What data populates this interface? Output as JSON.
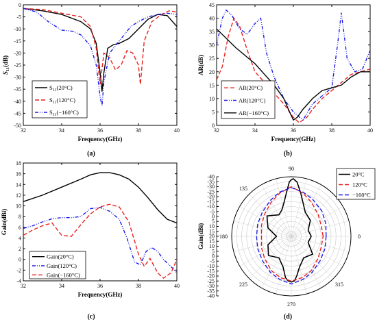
{
  "chart_data": [
    {
      "panel": "(a)",
      "type": "line",
      "xlabel": "Frequency(GHz)",
      "ylabel_parts": [
        "S",
        "11",
        "(dB)"
      ],
      "xlim": [
        32,
        40
      ],
      "ylim": [
        -50,
        0
      ],
      "xticks": [
        32,
        34,
        36,
        38,
        40
      ],
      "yticks": [
        0,
        -5,
        -10,
        -15,
        -20,
        -25,
        -30,
        -35,
        -40,
        -45,
        -50
      ],
      "legend_position": "bottom-left",
      "series": [
        {
          "name": "S11(20°C)",
          "name_parts": [
            "S",
            "11",
            "(20°C)"
          ],
          "color": "#000000",
          "dash": "solid",
          "x": [
            32,
            33,
            34,
            35,
            35.5,
            35.8,
            36.0,
            36.1,
            36.2,
            36.4,
            36.7,
            37,
            37.5,
            38,
            38.5,
            39,
            39.5,
            40
          ],
          "y": [
            -1.5,
            -2.5,
            -4,
            -7,
            -10,
            -16,
            -28,
            -36,
            -28,
            -18,
            -16.5,
            -16,
            -14,
            -10,
            -6,
            -4,
            -4.5,
            -9
          ]
        },
        {
          "name": "S11(120°C)",
          "name_parts": [
            "S",
            "11",
            "(120°C)"
          ],
          "color": "#e8211d",
          "dash": "dashed",
          "x": [
            32,
            33,
            34,
            35,
            35.5,
            35.8,
            36.0,
            36.2,
            36.5,
            36.8,
            37.1,
            37.4,
            37.7,
            38.0,
            38.1,
            38.3,
            38.7,
            39.2,
            39.6,
            40
          ],
          "y": [
            -1.5,
            -2,
            -3.5,
            -5,
            -9,
            -18,
            -33,
            -20,
            -22,
            -27,
            -25,
            -19,
            -20,
            -25,
            -33,
            -15,
            -7,
            -4,
            -2.5,
            -3
          ]
        },
        {
          "name": "S11(−160°C)",
          "name_parts": [
            "S",
            "11",
            "(−160°C)"
          ],
          "color": "#1a1ae8",
          "dash": "dashdotdot",
          "x": [
            32,
            32.7,
            33.3,
            34.0,
            34.6,
            35.0,
            35.5,
            35.8,
            36.0,
            36.1,
            36.2,
            36.5,
            36.8,
            37.2,
            37.6,
            38.0,
            38.5,
            39.0,
            39.5,
            40
          ],
          "y": [
            -1.5,
            -3,
            -7,
            -10.5,
            -11,
            -12.5,
            -17,
            -25,
            -38,
            -42,
            -32,
            -20,
            -17,
            -13,
            -9,
            -7,
            -5,
            -4,
            -3.5,
            -4
          ]
        }
      ]
    },
    {
      "panel": "(b)",
      "type": "line",
      "xlabel": "Frequency(GHz)",
      "ylabel": "AR(dB)",
      "xlim": [
        32,
        40
      ],
      "ylim": [
        0,
        45
      ],
      "xticks": [
        32,
        34,
        36,
        38,
        40
      ],
      "yticks": [
        0,
        5,
        10,
        15,
        20,
        25,
        30,
        35,
        40,
        45
      ],
      "legend_position": "bottom-left",
      "series": [
        {
          "name": "AR(20°C)",
          "color": "#e8211d",
          "dash": "dashed",
          "x": [
            32,
            32.3,
            32.6,
            32.9,
            33.2,
            33.6,
            34,
            34.5,
            35,
            35.5,
            36,
            36.3,
            36.7,
            37,
            37.5,
            38,
            38.5,
            39,
            39.5,
            40
          ],
          "y": [
            17,
            22,
            33,
            40,
            37,
            28,
            20,
            16,
            12,
            8,
            3,
            1,
            3,
            6,
            10,
            13,
            16,
            19,
            20,
            21
          ]
        },
        {
          "name": "AR(120°C)",
          "color": "#1a1ae8",
          "dash": "dashdotdot",
          "x": [
            32,
            32.3,
            32.5,
            32.8,
            33.2,
            33.6,
            34.0,
            34.3,
            34.6,
            35,
            35.5,
            36,
            36.5,
            37,
            37.5,
            38,
            38.3,
            38.5,
            38.8,
            39.2,
            39.6,
            40
          ],
          "y": [
            30,
            40,
            43,
            41,
            36,
            34,
            38,
            40,
            27,
            18,
            10,
            5,
            2,
            8,
            11,
            14,
            30,
            42,
            25,
            20,
            21,
            28
          ]
        },
        {
          "name": "AR(−160°C)",
          "color": "#000000",
          "dash": "solid",
          "x": [
            32,
            33,
            34,
            34.5,
            35,
            35.5,
            35.8,
            36.0,
            36.2,
            36.5,
            37,
            37.5,
            38,
            38.5,
            39,
            39.5,
            40
          ],
          "y": [
            36,
            29,
            23,
            19,
            15,
            10,
            5,
            2,
            3,
            6,
            10,
            13,
            14,
            15,
            18,
            20,
            20
          ]
        }
      ]
    },
    {
      "panel": "(c)",
      "type": "line",
      "xlabel": "Frequency(GHz)",
      "ylabel": "Gain(dBi)",
      "xlim": [
        32,
        40
      ],
      "ylim": [
        -4,
        18
      ],
      "xticks": [
        32,
        34,
        36,
        38,
        40
      ],
      "yticks": [
        -4,
        -2,
        0,
        2,
        4,
        6,
        8,
        10,
        12,
        14,
        16,
        18
      ],
      "legend_position": "bottom-left",
      "series": [
        {
          "name": "Gain(20°C)",
          "color": "#000000",
          "dash": "solid",
          "x": [
            32,
            33,
            34,
            35,
            35.5,
            36,
            36.5,
            37,
            37.5,
            38,
            38.5,
            39,
            39.5,
            40
          ],
          "y": [
            10.8,
            12,
            13.5,
            15,
            15.8,
            16.2,
            16.2,
            15.8,
            15,
            13.5,
            11.5,
            9.3,
            7.5,
            6.8
          ]
        },
        {
          "name": "Gain(120°C)",
          "color": "#1a1ae8",
          "dash": "dashdotdot",
          "x": [
            32,
            32.5,
            33,
            33.5,
            34,
            34.5,
            35,
            35.5,
            36,
            36.5,
            37,
            37.4,
            37.8,
            38.1,
            38.4,
            38.7,
            39,
            39.3,
            39.6,
            40
          ],
          "y": [
            5.8,
            6.3,
            7.0,
            7.6,
            7.8,
            7.8,
            8.0,
            9.5,
            9.7,
            9.0,
            7.5,
            4.0,
            -0.5,
            -1,
            1.5,
            2.2,
            1.5,
            0,
            -1,
            -2.5
          ]
        },
        {
          "name": "Gain(−160°C)",
          "color": "#e8211d",
          "dash": "dashed",
          "x": [
            32,
            32.5,
            33,
            33.5,
            34,
            34.5,
            35,
            35.5,
            36,
            36.5,
            37,
            37.5,
            38,
            38.3,
            38.6,
            39,
            39.3,
            39.7,
            40
          ],
          "y": [
            4.5,
            5.5,
            6.3,
            6.8,
            4.5,
            4.3,
            6.5,
            8.5,
            9.8,
            10.3,
            9.8,
            7,
            1,
            -1.3,
            0.2,
            -2.5,
            -3.5,
            -2.5,
            0
          ]
        }
      ]
    },
    {
      "panel": "(d)",
      "type": "polar",
      "ylabel": "Gain(dBi)",
      "rlim": [
        -40,
        20
      ],
      "rticks": [
        20,
        15,
        10,
        5,
        0,
        -5,
        -10,
        -15,
        -20,
        -25,
        -30,
        -35,
        -40
      ],
      "angle_labels": [
        "0",
        "45",
        "90",
        "135",
        "180",
        "225",
        "270",
        "315"
      ],
      "legend_position": "top-right",
      "series": [
        {
          "name": "20°C",
          "color": "#000000",
          "dash": "solid",
          "theta": [
            0,
            20,
            40,
            60,
            70,
            78,
            84,
            88,
            90,
            92,
            96,
            102,
            110,
            120,
            140,
            160,
            180,
            200,
            220,
            240,
            255,
            262,
            266,
            270,
            274,
            278,
            285,
            300,
            320,
            340,
            360
          ],
          "r": [
            -20,
            -22,
            -15,
            -12,
            -5,
            5,
            15,
            18,
            17,
            15,
            5,
            -5,
            -12,
            -15,
            -8,
            -15,
            -25,
            -15,
            -10,
            -15,
            -8,
            2,
            5,
            6,
            5,
            0,
            -8,
            -15,
            -12,
            -22,
            -20
          ]
        },
        {
          "name": "120°C",
          "color": "#e8211d",
          "dash": "dashed",
          "theta": [
            0,
            20,
            40,
            60,
            75,
            90,
            105,
            120,
            140,
            160,
            180,
            200,
            220,
            240,
            255,
            270,
            285,
            300,
            320,
            340,
            360
          ],
          "r": [
            -8,
            -8,
            -5,
            0,
            5,
            10,
            5,
            0,
            -5,
            -8,
            -10,
            -8,
            -5,
            0,
            3,
            5,
            3,
            0,
            -5,
            -8,
            -8
          ]
        },
        {
          "name": "−160°C",
          "color": "#1a1ae8",
          "dash": "dashed",
          "theta": [
            0,
            20,
            40,
            60,
            75,
            90,
            105,
            120,
            140,
            160,
            180,
            200,
            220,
            240,
            255,
            270,
            285,
            300,
            320,
            340,
            360
          ],
          "r": [
            -5,
            -3,
            0,
            3,
            6,
            9,
            6,
            2,
            -2,
            -4,
            -5,
            -4,
            -2,
            2,
            5,
            8,
            5,
            2,
            -2,
            -4,
            -5
          ]
        }
      ]
    }
  ]
}
